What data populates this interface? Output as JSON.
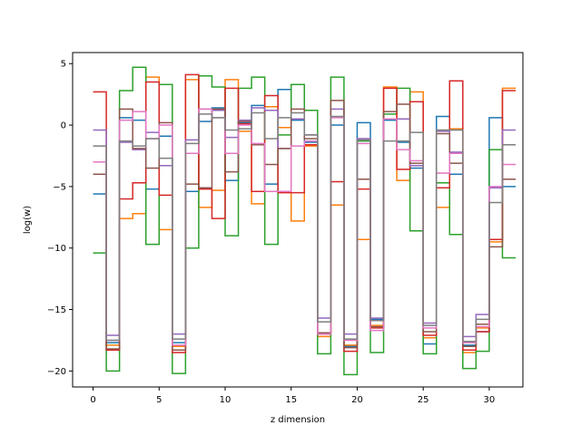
{
  "chart_data": {
    "type": "line",
    "step": "post",
    "xlabel": "z dimension",
    "ylabel": "log(w)",
    "xlim": [
      -1.55,
      32.55
    ],
    "ylim": [
      -21.3,
      5.9
    ],
    "xticks": [
      0,
      5,
      10,
      15,
      20,
      25,
      30
    ],
    "yticks": [
      -20,
      -15,
      -10,
      -5,
      0,
      5
    ],
    "grid": false,
    "legend": "none",
    "x": [
      0,
      1,
      2,
      3,
      4,
      5,
      6,
      7,
      8,
      9,
      10,
      11,
      12,
      13,
      14,
      15,
      16,
      17,
      18,
      19,
      20,
      21,
      22,
      23,
      24,
      25,
      26,
      27,
      28,
      29,
      30,
      31
    ],
    "series": [
      {
        "color": "#1f77b4",
        "values": [
          -5.6,
          -17.7,
          0.6,
          0.4,
          -5.2,
          -0.9,
          -17.7,
          -5.4,
          0.3,
          1.4,
          -4.5,
          0.2,
          1.6,
          -4.8,
          2.9,
          0.4,
          -1.4,
          -17.0,
          0.0,
          -18.0,
          0.2,
          -15.8,
          0.4,
          -1.4,
          -3.5,
          -17.8,
          0.7,
          -4.0,
          -17.9,
          -16.8,
          0.6,
          -5.0
        ]
      },
      {
        "color": "#ff7f0e",
        "values": [
          -3.0,
          -17.9,
          -7.6,
          -7.2,
          3.9,
          -8.5,
          -18.0,
          3.7,
          -6.7,
          -5.3,
          3.7,
          -0.5,
          -6.4,
          1.5,
          -0.2,
          -7.8,
          -1.7,
          -17.2,
          -6.5,
          -17.9,
          -9.3,
          -16.3,
          3.1,
          -4.5,
          2.7,
          -17.3,
          -6.7,
          -0.3,
          -18.5,
          -16.5,
          -9.5,
          3.0
        ]
      },
      {
        "color": "#2ca02c",
        "values": [
          -10.4,
          -20.0,
          2.8,
          4.7,
          -9.7,
          3.3,
          -20.2,
          -10.0,
          4.0,
          3.1,
          -9.0,
          3.0,
          3.9,
          -9.7,
          -0.8,
          3.3,
          1.2,
          -18.6,
          3.9,
          -20.3,
          -1.3,
          -18.5,
          0.9,
          3.0,
          -8.6,
          -18.6,
          -4.7,
          -8.9,
          -19.8,
          -18.4,
          -2.0,
          -10.8
        ]
      },
      {
        "color": "#d62728",
        "values": [
          2.7,
          -18.3,
          -6.0,
          -4.7,
          3.5,
          -5.7,
          -18.5,
          4.1,
          -5.2,
          -7.6,
          3.0,
          0.1,
          -5.4,
          2.4,
          -5.5,
          -5.5,
          -1.6,
          -17.0,
          -4.6,
          -18.4,
          -5.2,
          -16.5,
          3.0,
          -3.6,
          1.9,
          -17.1,
          -5.1,
          3.6,
          -18.3,
          -16.8,
          -9.3,
          2.8
        ]
      },
      {
        "color": "#9467bd",
        "values": [
          -0.4,
          -17.1,
          -1.4,
          -2.0,
          -0.6,
          -3.3,
          -17.0,
          -1.2,
          1.3,
          1.2,
          -1.0,
          0.4,
          1.4,
          1.2,
          -1.9,
          0.5,
          -0.8,
          -15.7,
          1.3,
          -17.0,
          -1.1,
          -15.7,
          0.5,
          0.5,
          -3.3,
          -16.1,
          -0.5,
          -2.2,
          -17.2,
          -15.4,
          -5.1,
          -0.4
        ]
      },
      {
        "color": "#8c564b",
        "values": [
          -4.0,
          -18.2,
          1.3,
          -1.9,
          -3.5,
          0.2,
          -18.3,
          -4.8,
          -5.1,
          1.3,
          -3.8,
          0.3,
          -1.6,
          -3.2,
          -1.9,
          1.3,
          -1.1,
          -16.9,
          2.0,
          -18.1,
          -4.4,
          -16.4,
          1.1,
          1.7,
          -3.1,
          -16.8,
          -0.7,
          -3.1,
          -18.0,
          -16.2,
          -9.9,
          -4.4
        ]
      },
      {
        "color": "#e377c2",
        "values": [
          -3.0,
          -17.5,
          0.4,
          1.1,
          -1.1,
          0.0,
          -17.9,
          -2.3,
          1.3,
          0.6,
          -2.3,
          0.0,
          -1.5,
          -5.4,
          -5.4,
          -1.7,
          -1.3,
          -17.0,
          0.6,
          -17.5,
          -1.5,
          -16.7,
          0.5,
          -2.0,
          -2.9,
          -16.5,
          -3.9,
          -2.3,
          -17.7,
          -16.4,
          -5.0,
          -3.2
        ]
      },
      {
        "color": "#7f7f7f",
        "values": [
          -1.7,
          -17.5,
          -1.3,
          -1.7,
          -1.1,
          -2.7,
          -17.4,
          -1.5,
          0.9,
          0.6,
          -0.4,
          -0.3,
          1.0,
          -1.1,
          0.6,
          1.0,
          -0.8,
          -16.0,
          0.7,
          -17.4,
          -1.2,
          -15.9,
          -1.3,
          -1.3,
          -0.6,
          -16.3,
          -0.4,
          -0.4,
          -17.6,
          -15.8,
          -6.3,
          -1.6
        ]
      }
    ]
  }
}
